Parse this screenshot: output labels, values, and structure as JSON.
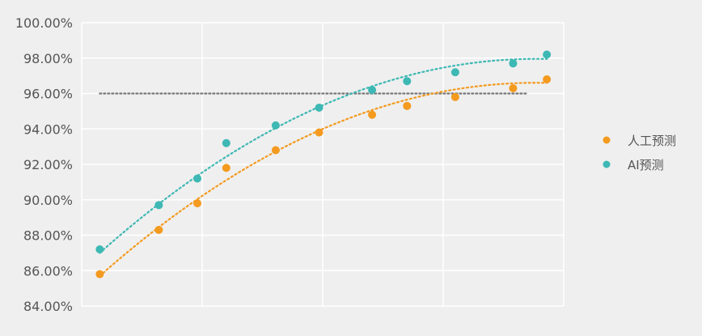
{
  "chart_data": {
    "type": "scatter",
    "title": "",
    "xlabel": "",
    "ylabel": "",
    "xlim": [
      0,
      4
    ],
    "ylim": [
      84,
      100
    ],
    "y_ticks": [
      "100.00%",
      "98.00%",
      "96.00%",
      "94.00%",
      "92.00%",
      "90.00%",
      "88.00%",
      "86.00%",
      "84.00%"
    ],
    "grid": "on",
    "legend_position": "right",
    "reference_line": {
      "y": 96,
      "x_range": [
        0.15,
        3.7
      ]
    },
    "series": [
      {
        "name": "人工预测",
        "color": "#f39a1f",
        "x": [
          0.15,
          0.64,
          0.96,
          1.2,
          1.61,
          1.97,
          2.41,
          2.7,
          3.1,
          3.58,
          3.86
        ],
        "y": [
          85.8,
          88.3,
          89.8,
          91.8,
          92.8,
          93.8,
          94.8,
          95.3,
          95.8,
          96.3,
          96.8
        ],
        "trend": {
          "x": [
            0.15,
            3.86
          ],
          "y": [
            85.7,
            96.6
          ]
        }
      },
      {
        "name": "AI预测",
        "color": "#3db8b4",
        "x": [
          0.15,
          0.64,
          0.96,
          1.2,
          1.61,
          1.97,
          2.41,
          2.7,
          3.1,
          3.58,
          3.86
        ],
        "y": [
          87.2,
          89.7,
          91.2,
          93.2,
          94.2,
          95.2,
          96.2,
          96.7,
          97.2,
          97.7,
          98.2
        ],
        "trend": {
          "x": [
            0.15,
            3.86
          ],
          "y": [
            87.0,
            97.95
          ]
        }
      }
    ]
  }
}
